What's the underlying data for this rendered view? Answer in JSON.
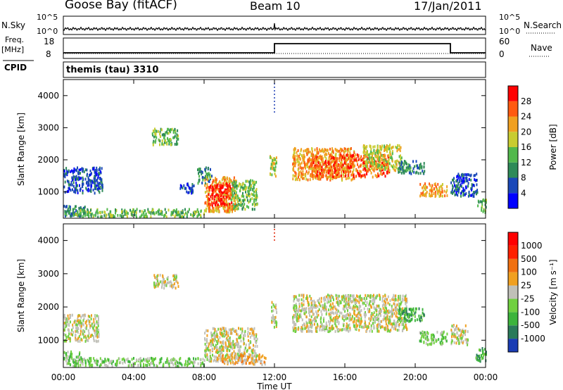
{
  "header": {
    "station": "Goose Bay (fitACF)",
    "beam": "Beam 10",
    "date": "17/Jan/2011"
  },
  "top_panels": {
    "nsky_label": "N.Sky",
    "nsearch_label": "N.Search",
    "nsky_ticks": [
      "10^5",
      "10^0"
    ],
    "nsearch_ticks": [
      "10^5",
      "10^0"
    ],
    "freq_label": "Freq.",
    "freq_unit": "[MHz]",
    "freq_ticks": [
      "18",
      "8"
    ],
    "nave_label": "Nave",
    "nave_ticks": [
      "60",
      "0"
    ],
    "cpid_label": "CPID",
    "cpid_text": "themis (tau) 3310"
  },
  "chart_data": [
    {
      "type": "heatmap",
      "name": "power",
      "ylabel": "Slant Range [km]",
      "yticks": [
        "4000",
        "3000",
        "2000",
        "1000"
      ],
      "ylim": [
        180,
        4500
      ],
      "colorbar_label": "Power [dB]",
      "colorbar_ticks": [
        "28",
        "24",
        "20",
        "16",
        "12",
        "8",
        "4"
      ],
      "colorbar_colors": [
        "#0000ff",
        "#1a48b8",
        "#2e8a58",
        "#52b84c",
        "#c8cc30",
        "#f0a020",
        "#ff5a10",
        "#ff0000"
      ],
      "regions": [
        {
          "t": [
            0.0,
            2.2
          ],
          "r": [
            1.0,
            1.8
          ],
          "level": 1
        },
        {
          "t": [
            0.0,
            1.3
          ],
          "r": [
            0.25,
            0.6
          ],
          "level": 2
        },
        {
          "t": [
            0.5,
            8.0
          ],
          "r": [
            0.25,
            0.5
          ],
          "level": 3
        },
        {
          "t": [
            5.0,
            6.5
          ],
          "r": [
            2.5,
            3.0
          ],
          "level": 3
        },
        {
          "t": [
            6.6,
            7.4
          ],
          "r": [
            1.0,
            1.3
          ],
          "level": 1
        },
        {
          "t": [
            7.6,
            8.4
          ],
          "r": [
            1.3,
            1.8
          ],
          "level": 2
        },
        {
          "t": [
            8.0,
            9.8
          ],
          "r": [
            0.4,
            1.5
          ],
          "level": 5
        },
        {
          "t": [
            8.2,
            9.6
          ],
          "r": [
            0.6,
            1.3
          ],
          "level": 7
        },
        {
          "t": [
            9.5,
            11.0
          ],
          "r": [
            0.5,
            1.4
          ],
          "level": 3
        },
        {
          "t": [
            11.7,
            12.1
          ],
          "r": [
            1.5,
            2.2
          ],
          "level": 4
        },
        {
          "t": [
            13.0,
            16.5
          ],
          "r": [
            1.4,
            2.4
          ],
          "level": 5
        },
        {
          "t": [
            14.0,
            18.5
          ],
          "r": [
            1.5,
            2.2
          ],
          "level": 6
        },
        {
          "t": [
            17.0,
            19.2
          ],
          "r": [
            1.7,
            2.5
          ],
          "level": 4
        },
        {
          "t": [
            19.0,
            20.5
          ],
          "r": [
            1.6,
            2.0
          ],
          "level": 2
        },
        {
          "t": [
            20.2,
            21.8
          ],
          "r": [
            0.9,
            1.3
          ],
          "level": 5
        },
        {
          "t": [
            22.0,
            23.5
          ],
          "r": [
            0.9,
            1.6
          ],
          "level": 1
        },
        {
          "t": [
            23.5,
            24.0
          ],
          "r": [
            0.4,
            0.8
          ],
          "level": 3
        }
      ]
    },
    {
      "type": "heatmap",
      "name": "velocity",
      "ylabel": "Slant Range [km]",
      "yticks": [
        "4000",
        "3000",
        "2000",
        "1000"
      ],
      "ylim": [
        180,
        4500
      ],
      "xticks": [
        "00:00",
        "04:00",
        "08:00",
        "12:00",
        "16:00",
        "20:00",
        "00:00"
      ],
      "xlim": [
        0,
        24
      ],
      "xlabel": "Time UT",
      "colorbar_label": "Velocity [m s⁻¹]",
      "colorbar_ticks": [
        "1000",
        "500",
        "100",
        "25",
        "-25",
        "-100",
        "-500",
        "-1000"
      ],
      "colorbar_colors": [
        "#1a3cb4",
        "#2a7a5a",
        "#3cb43c",
        "#70d040",
        "#c0c0b8",
        "#f0a020",
        "#f07010",
        "#ff2000",
        "#ff0000"
      ],
      "regions": [
        {
          "t": [
            0.0,
            2.0
          ],
          "r": [
            1.0,
            1.8
          ],
          "level": 4
        },
        {
          "t": [
            0.0,
            1.0
          ],
          "r": [
            0.3,
            0.7
          ],
          "level": 3
        },
        {
          "t": [
            0.5,
            8.0
          ],
          "r": [
            0.25,
            0.5
          ],
          "level": 3
        },
        {
          "t": [
            5.0,
            6.5
          ],
          "r": [
            2.6,
            3.0
          ],
          "level": 4
        },
        {
          "t": [
            8.0,
            11.0
          ],
          "r": [
            0.4,
            1.4
          ],
          "level": 4
        },
        {
          "t": [
            9.0,
            11.5
          ],
          "r": [
            0.3,
            0.6
          ],
          "level": 5
        },
        {
          "t": [
            11.8,
            12.1
          ],
          "r": [
            1.4,
            2.2
          ],
          "level": 4
        },
        {
          "t": [
            13.0,
            19.5
          ],
          "r": [
            1.3,
            2.4
          ],
          "level": 4
        },
        {
          "t": [
            19.0,
            20.5
          ],
          "r": [
            1.6,
            2.0
          ],
          "level": 2
        },
        {
          "t": [
            20.2,
            21.8
          ],
          "r": [
            0.9,
            1.3
          ],
          "level": 3
        },
        {
          "t": [
            22.0,
            23.0
          ],
          "r": [
            0.9,
            1.5
          ],
          "level": 4
        },
        {
          "t": [
            23.4,
            24.0
          ],
          "r": [
            0.4,
            0.8
          ],
          "level": 2
        }
      ]
    }
  ]
}
